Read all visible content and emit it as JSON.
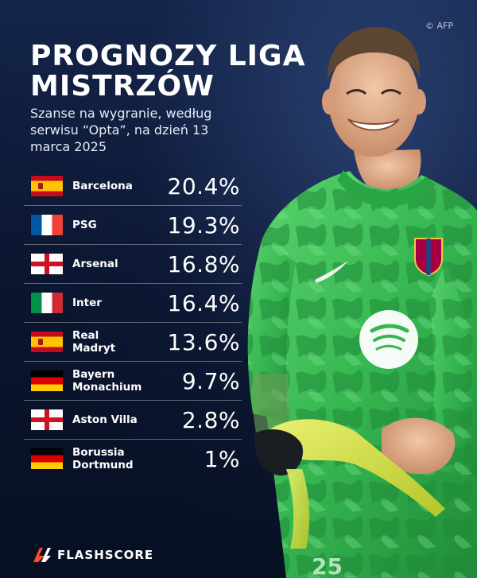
{
  "credit": "© AFP",
  "title": "PROGNOZY LIGA MISTRZÓW",
  "subtitle": "Szanse na wygranie, według serwisu “Opta”, na dzień 13 marca 2025",
  "rows": [
    {
      "team": "Barcelona",
      "pct": "20.4%",
      "flag": "spain-flag-icon"
    },
    {
      "team": "PSG",
      "pct": "19.3%",
      "flag": "france-flag-icon"
    },
    {
      "team": "Arsenal",
      "pct": "16.8%",
      "flag": "england-flag-icon"
    },
    {
      "team": "Inter",
      "pct": "16.4%",
      "flag": "italy-flag-icon"
    },
    {
      "team": "Real\nMadryt",
      "pct": "13.6%",
      "flag": "spain-flag-icon"
    },
    {
      "team": "Bayern\nMonachium",
      "pct": "9.7%",
      "flag": "germany-flag-icon"
    },
    {
      "team": "Aston Villa",
      "pct": "2.8%",
      "flag": "england-flag-icon"
    },
    {
      "team": "Borussia\nDortmund",
      "pct": "1%",
      "flag": "germany-flag-icon"
    }
  ],
  "brand": "FLASHSCORE",
  "colors": {
    "background": "#0b1730",
    "jersey": "#3fbf5a",
    "text": "#ffffff"
  }
}
